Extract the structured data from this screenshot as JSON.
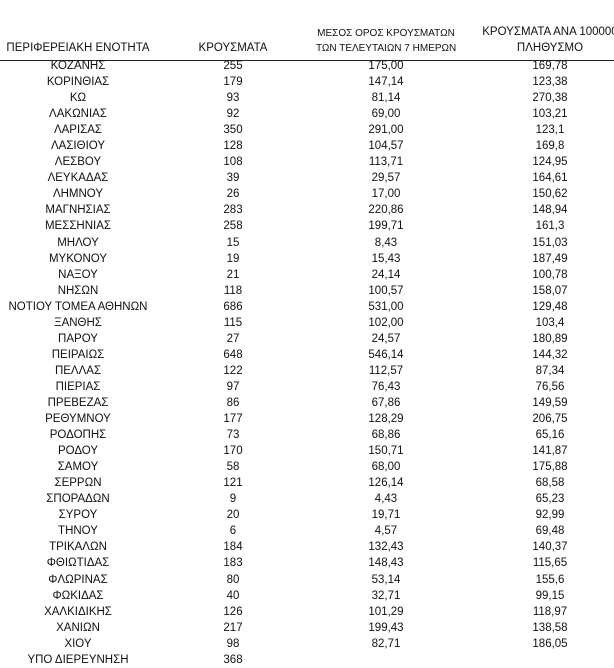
{
  "table": {
    "headers": {
      "region": "ΠΕΡΙΦΕΡΕΙΑΚΗ ΕΝΟΤΗΤΑ",
      "cases": "ΚΡΟΥΣΜΑΤΑ",
      "avg_line1": "ΜΕΣΟΣ ΟΡΟΣ ΚΡΟΥΣΜΑΤΩΝ",
      "avg_line2": "ΤΩΝ ΤΕΛΕΥΤΑΙΩΝ 7 ΗΜΕΡΩΝ",
      "per100k_line1": "ΚΡΟΥΣΜΑΤΑ ΑΝΑ 100000",
      "per100k_line2": "ΠΛΗΘΥΣΜΟ"
    },
    "rows": [
      [
        "ΚΟΖΑΝΗΣ",
        "255",
        "175,00",
        "169,78"
      ],
      [
        "ΚΟΡΙΝΘΙΑΣ",
        "179",
        "147,14",
        "123,38"
      ],
      [
        "ΚΩ",
        "93",
        "81,14",
        "270,38"
      ],
      [
        "ΛΑΚΩΝΙΑΣ",
        "92",
        "69,00",
        "103,21"
      ],
      [
        "ΛΑΡΙΣΑΣ",
        "350",
        "291,00",
        "123,1"
      ],
      [
        "ΛΑΣΙΘΙΟΥ",
        "128",
        "104,57",
        "169,8"
      ],
      [
        "ΛΕΣΒΟΥ",
        "108",
        "113,71",
        "124,95"
      ],
      [
        "ΛΕΥΚΑΔΑΣ",
        "39",
        "29,57",
        "164,61"
      ],
      [
        "ΛΗΜΝΟΥ",
        "26",
        "17,00",
        "150,62"
      ],
      [
        "ΜΑΓΝΗΣΙΑΣ",
        "283",
        "220,86",
        "148,94"
      ],
      [
        "ΜΕΣΣΗΝΙΑΣ",
        "258",
        "199,71",
        "161,3"
      ],
      [
        "ΜΗΛΟΥ",
        "15",
        "8,43",
        "151,03"
      ],
      [
        "ΜΥΚΟΝΟΥ",
        "19",
        "15,43",
        "187,49"
      ],
      [
        "ΝΑΞΟΥ",
        "21",
        "24,14",
        "100,78"
      ],
      [
        "ΝΗΣΩΝ",
        "118",
        "100,57",
        "158,07"
      ],
      [
        "ΝΟΤΙΟΥ ΤΟΜΕΑ ΑΘΗΝΩΝ",
        "686",
        "531,00",
        "129,48"
      ],
      [
        "ΞΑΝΘΗΣ",
        "115",
        "102,00",
        "103,4"
      ],
      [
        "ΠΑΡΟΥ",
        "27",
        "24,57",
        "180,89"
      ],
      [
        "ΠΕΙΡΑΙΩΣ",
        "648",
        "546,14",
        "144,32"
      ],
      [
        "ΠΕΛΛΑΣ",
        "122",
        "112,57",
        "87,34"
      ],
      [
        "ΠΙΕΡΙΑΣ",
        "97",
        "76,43",
        "76,56"
      ],
      [
        "ΠΡΕΒΕΖΑΣ",
        "86",
        "67,86",
        "149,59"
      ],
      [
        "ΡΕΘΥΜΝΟΥ",
        "177",
        "128,29",
        "206,75"
      ],
      [
        "ΡΟΔΟΠΗΣ",
        "73",
        "68,86",
        "65,16"
      ],
      [
        "ΡΟΔΟΥ",
        "170",
        "150,71",
        "141,87"
      ],
      [
        "ΣΑΜΟΥ",
        "58",
        "68,00",
        "175,88"
      ],
      [
        "ΣΕΡΡΩΝ",
        "121",
        "126,14",
        "68,58"
      ],
      [
        "ΣΠΟΡΑΔΩΝ",
        "9",
        "4,43",
        "65,23"
      ],
      [
        "ΣΥΡΟΥ",
        "20",
        "19,71",
        "92,99"
      ],
      [
        "ΤΗΝΟΥ",
        "6",
        "4,57",
        "69,48"
      ],
      [
        "ΤΡΙΚΑΛΩΝ",
        "184",
        "132,43",
        "140,37"
      ],
      [
        "ΦΘΙΩΤΙΔΑΣ",
        "183",
        "148,43",
        "115,65"
      ],
      [
        "ΦΛΩΡΙΝΑΣ",
        "80",
        "53,14",
        "155,6"
      ],
      [
        "ΦΩΚΙΔΑΣ",
        "40",
        "32,71",
        "99,15"
      ],
      [
        "ΧΑΛΚΙΔΙΚΗΣ",
        "126",
        "101,29",
        "118,97"
      ],
      [
        "ΧΑΝΙΩΝ",
        "217",
        "199,43",
        "138,58"
      ],
      [
        "ΧΙΟΥ",
        "98",
        "82,71",
        "186,05"
      ],
      [
        "ΥΠΟ ΔΙΕΡΕΥΝΗΣΗ",
        "368",
        "",
        ""
      ]
    ]
  }
}
